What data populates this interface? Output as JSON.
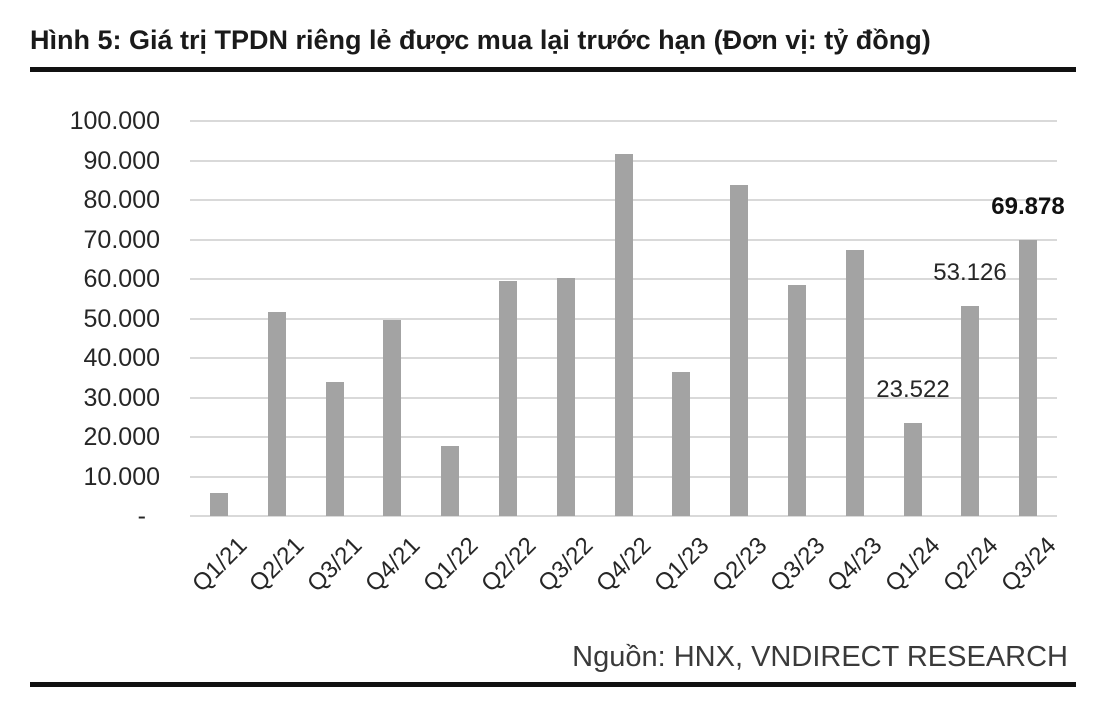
{
  "figure": {
    "title": "Hình 5: Giá trị TPDN riêng lẻ được mua lại trước hạn (Đơn vị: tỷ đồng)",
    "source": "Nguồn: HNX, VNDIRECT RESEARCH"
  },
  "colors": {
    "bar": "#a3a3a3",
    "gridline": "#d9d9d9",
    "rule": "#111111",
    "title_text": "#1a1a1a",
    "axis_text": "#262626",
    "source_text": "#3a3a3a"
  },
  "chart_data": {
    "type": "bar",
    "title": "Giá trị TPDN riêng lẻ được mua lại trước hạn",
    "unit": "tỷ đồng",
    "categories": [
      "Q1/21",
      "Q2/21",
      "Q3/21",
      "Q4/21",
      "Q1/22",
      "Q2/22",
      "Q3/22",
      "Q4/22",
      "Q1/23",
      "Q2/23",
      "Q3/23",
      "Q4/23",
      "Q1/24",
      "Q2/24",
      "Q3/24"
    ],
    "values": [
      5900,
      51600,
      33800,
      49500,
      17800,
      59400,
      60200,
      91700,
      36500,
      83800,
      58400,
      67400,
      23522,
      53126,
      69878
    ],
    "y_ticks": [
      {
        "label": "100.000",
        "value": 100000
      },
      {
        "label": "90.000",
        "value": 90000
      },
      {
        "label": "80.000",
        "value": 80000
      },
      {
        "label": "70.000",
        "value": 70000
      },
      {
        "label": "60.000",
        "value": 60000
      },
      {
        "label": "50.000",
        "value": 50000
      },
      {
        "label": "40.000",
        "value": 40000
      },
      {
        "label": "30.000",
        "value": 30000
      },
      {
        "label": "20.000",
        "value": 20000
      },
      {
        "label": "10.000",
        "value": 10000
      },
      {
        "label": "-",
        "value": 0
      }
    ],
    "ylim": [
      0,
      100000
    ],
    "grid": true,
    "legend": false,
    "data_labels": [
      {
        "index": 12,
        "text": "23.522",
        "bold": false
      },
      {
        "index": 13,
        "text": "53.126",
        "bold": false
      },
      {
        "index": 14,
        "text": "69.878",
        "bold": true
      }
    ],
    "source": "Nguồn: HNX, VNDIRECT RESEARCH"
  }
}
